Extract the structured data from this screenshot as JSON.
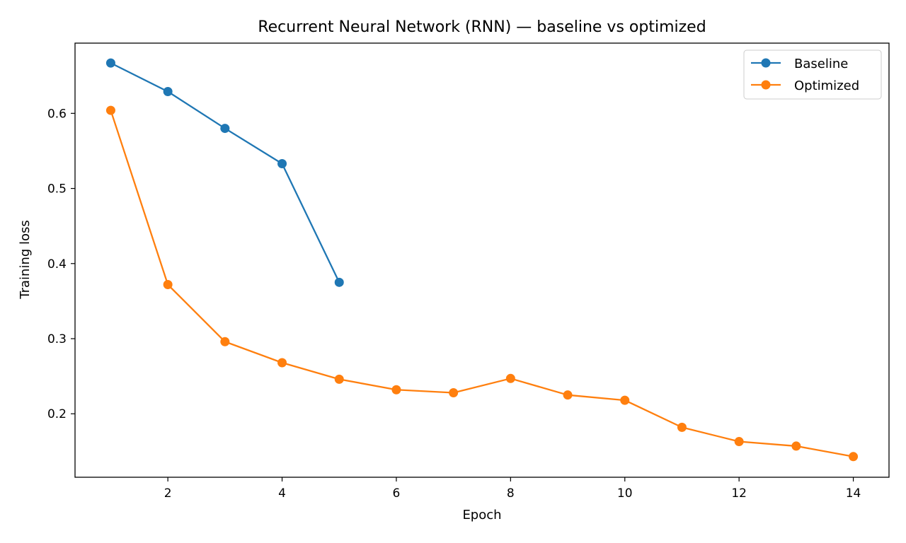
{
  "chart_data": {
    "type": "line",
    "title": "Recurrent Neural Network (RNN) — baseline vs optimized",
    "xlabel": "Epoch",
    "ylabel": "Training loss",
    "xlim": [
      0.375,
      14.625
    ],
    "ylim": [
      0.1155,
      0.6935
    ],
    "xticks": [
      2,
      4,
      6,
      8,
      10,
      12,
      14
    ],
    "yticks": [
      0.2,
      0.3,
      0.4,
      0.5,
      0.6
    ],
    "grid": false,
    "legend_position": "top-right",
    "series": [
      {
        "name": "Baseline",
        "color": "#1f77b4",
        "x": [
          1,
          2,
          3,
          4,
          5
        ],
        "y": [
          0.667,
          0.629,
          0.58,
          0.533,
          0.375
        ]
      },
      {
        "name": "Optimized",
        "color": "#ff7f0e",
        "x": [
          1,
          2,
          3,
          4,
          5,
          6,
          7,
          8,
          9,
          10,
          11,
          12,
          13,
          14
        ],
        "y": [
          0.604,
          0.372,
          0.296,
          0.268,
          0.246,
          0.232,
          0.228,
          0.247,
          0.225,
          0.218,
          0.182,
          0.163,
          0.157,
          0.143
        ]
      }
    ]
  }
}
